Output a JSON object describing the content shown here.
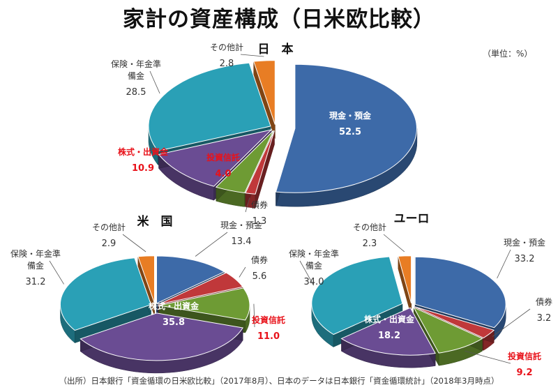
{
  "title": "家計の資産構成（日米欧比較）",
  "unit": "（単位：%）",
  "source": "（出所）日本銀行「資金循環の日米欧比較」（2017年8月）、日本のデータは日本銀行「資金循環統計」（2018年3月時点）",
  "colors": {
    "cash": "#3d6aa8",
    "bonds": "#c0383a",
    "funds": "#6e9b34",
    "stocks": "#6a4c93",
    "insurance": "#2aa0b6",
    "other": "#e87d24",
    "highlight_text": "#e8121a"
  },
  "chart_data": [
    {
      "type": "pie",
      "title": "日　本",
      "categories": [
        "現金・預金",
        "債券",
        "投資信託",
        "株式・出資金",
        "保険・年金準備金",
        "その他計"
      ],
      "values": [
        52.5,
        1.3,
        4.0,
        10.9,
        28.5,
        2.8
      ],
      "value_labels": [
        "52.5",
        "1.3",
        "4.0",
        "10.9",
        "28.5",
        "2.8"
      ],
      "label_texts": [
        "現金・預金",
        "債券",
        "投資信託",
        "株式・出資金",
        "保険・年金準\n備金",
        "その他計"
      ],
      "highlighted": [
        false,
        false,
        true,
        true,
        false,
        false
      ]
    },
    {
      "type": "pie",
      "title": "米　国",
      "categories": [
        "現金・預金",
        "債券",
        "投資信託",
        "株式・出資金",
        "保険・年金準備金",
        "その他計"
      ],
      "values": [
        13.4,
        5.6,
        11.0,
        35.8,
        31.2,
        2.9
      ],
      "value_labels": [
        "13.4",
        "5.6",
        "11.0",
        "35.8",
        "31.2",
        "2.9"
      ],
      "label_texts": [
        "現金・預金",
        "債券",
        "投資信託",
        "株式・出資金",
        "保険・年金準\n備金",
        "その他計"
      ],
      "highlighted": [
        false,
        false,
        true,
        false,
        false,
        false
      ]
    },
    {
      "type": "pie",
      "title": "ユーロ",
      "categories": [
        "現金・預金",
        "債券",
        "投資信託",
        "株式・出資金",
        "保険・年金準備金",
        "その他計"
      ],
      "values": [
        33.2,
        3.2,
        9.2,
        18.2,
        34.0,
        2.3
      ],
      "value_labels": [
        "33.2",
        "3.2",
        "9.2",
        "18.2",
        "34.0",
        "2.3"
      ],
      "label_texts": [
        "現金・預金",
        "債券",
        "投資信託",
        "株式・出資金",
        "保険・年金準\n備金",
        "その他計"
      ],
      "highlighted": [
        false,
        false,
        true,
        false,
        false,
        false
      ]
    }
  ]
}
